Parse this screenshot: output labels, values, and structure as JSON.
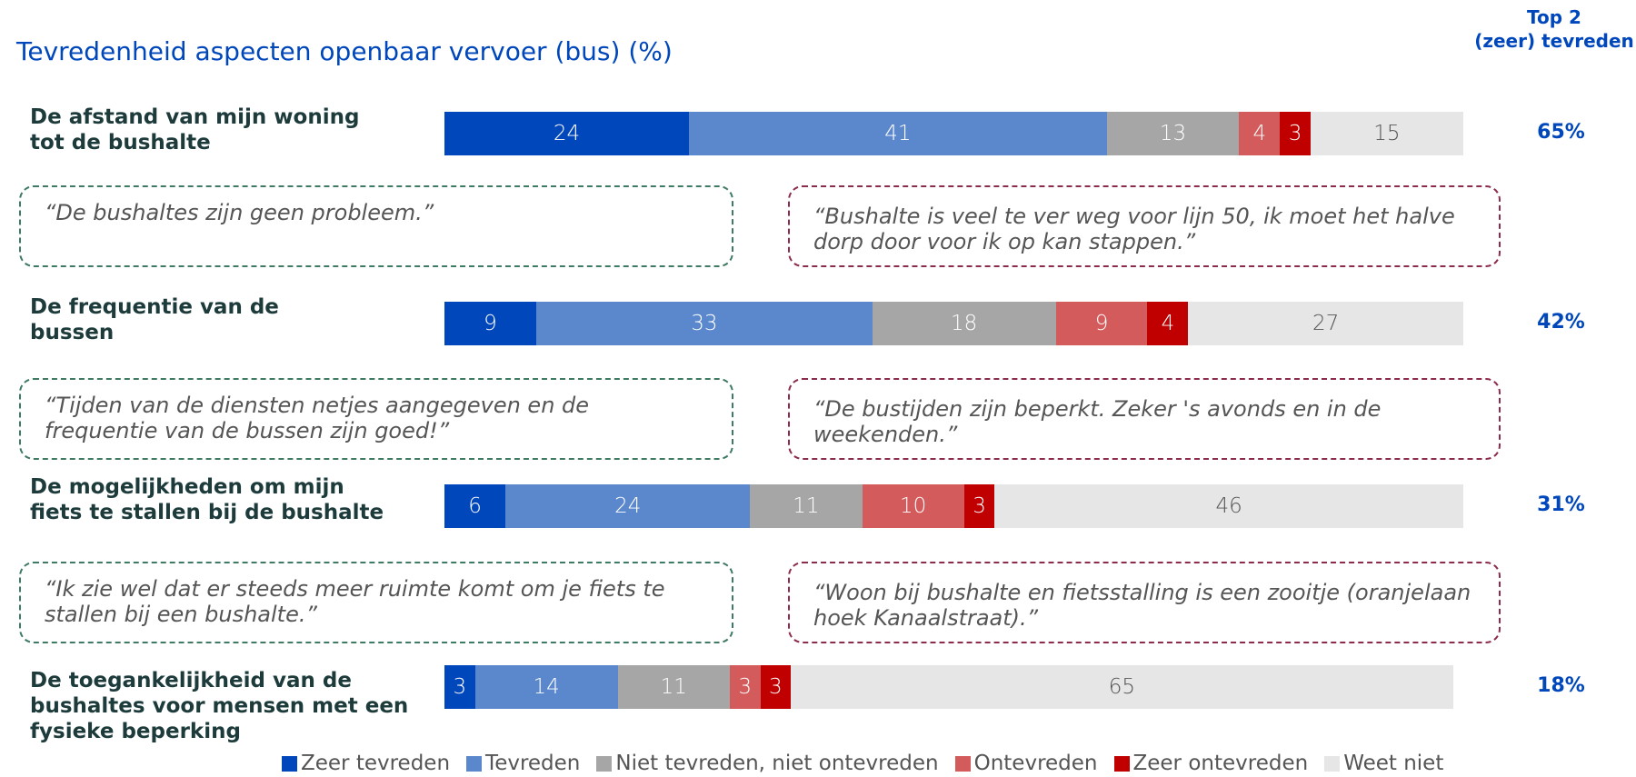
{
  "chart_data": {
    "type": "bar",
    "orientation": "horizontal",
    "stacked": true,
    "title": "Tevredenheid aspecten openbaar vervoer (bus) (%)",
    "categories": [
      "De afstand van mijn woning\ntot de bushalte",
      "De frequentie van de\nbussen",
      "De mogelijkheden om mijn\nfiets te stallen bij de bushalte",
      "De toegankelijkheid van de\nbushaltes voor mensen met een\nfysieke beperking"
    ],
    "xlim": [
      0,
      100
    ],
    "series": [
      {
        "name": "Zeer tevreden",
        "color": "#0047bb",
        "label_color": "#ffffff",
        "values": [
          24,
          9,
          6,
          3
        ]
      },
      {
        "name": "Tevreden",
        "color": "#5b88cc",
        "label_color": "#ffffff",
        "values": [
          41,
          33,
          24,
          14
        ]
      },
      {
        "name": "Niet tevreden, niet ontevreden",
        "color": "#a6a6a6",
        "label_color": "#ffffff",
        "values": [
          13,
          18,
          11,
          11
        ]
      },
      {
        "name": "Ontevreden",
        "color": "#d45b5b",
        "label_color": "#ffffff",
        "values": [
          4,
          9,
          10,
          3
        ]
      },
      {
        "name": "Zeer ontevreden",
        "color": "#c00000",
        "label_color": "#ffffff",
        "values": [
          3,
          4,
          3,
          3
        ]
      },
      {
        "name": "Weet niet",
        "color": "#e6e6e6",
        "label_color": "#555555",
        "values": [
          15,
          27,
          46,
          65
        ]
      }
    ],
    "top2": {
      "title": "Top 2\n(zeer) tevreden",
      "values": [
        65,
        42,
        31,
        18
      ],
      "value_labels": [
        "65%",
        "42%",
        "31%",
        "18%"
      ]
    },
    "legend": "bottom"
  },
  "quotes": [
    {
      "positive": "“De bushaltes zijn geen probleem.”",
      "negative": "“Bushalte is veel te ver weg voor lijn 50, ik moet het halve dorp door voor ik op kan stappen.”"
    },
    {
      "positive": "“Tijden van de diensten netjes aangegeven en de frequentie van de bussen zijn goed!”",
      "negative": "“De bustijden zijn beperkt. Zeker 's avonds en in de weekenden.”"
    },
    {
      "positive": "“Ik zie wel dat er steeds meer ruimte komt om je fiets te stallen bij een bushalte.”",
      "negative": "“Woon bij bushalte en fietsstalling is een zooitje (oranjelaan hoek Kanaalstraat).”"
    }
  ]
}
